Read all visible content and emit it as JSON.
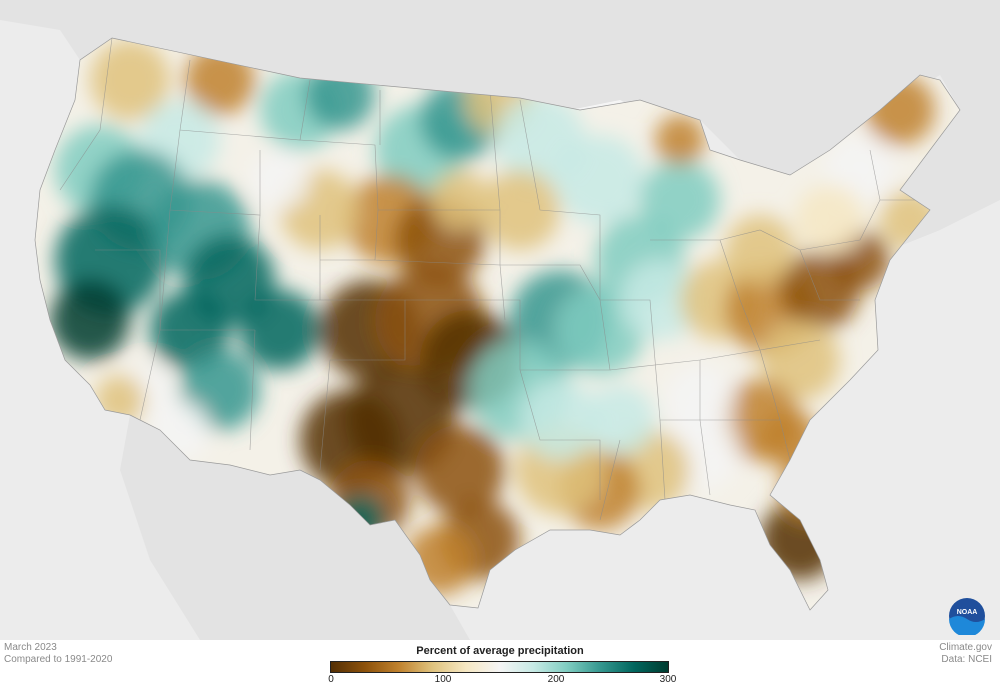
{
  "caption": {
    "date": "March 2023",
    "baseline": "Compared to 1991-2020"
  },
  "credit": {
    "site": "Climate.gov",
    "source": "Data: NCEI"
  },
  "legend": {
    "title": "Percent of average precipitation",
    "ticks": [
      "0",
      "100",
      "200",
      "300"
    ],
    "min": 0,
    "max": 300,
    "colors": [
      "#543005",
      "#8c510a",
      "#bf812d",
      "#dfc27d",
      "#f6e8c3",
      "#f5f5f5",
      "#c7eae5",
      "#80cdc1",
      "#35978f",
      "#01665e",
      "#003c30"
    ]
  },
  "logo": {
    "icon": "noaa-logo-icon",
    "text": "NOAA"
  },
  "colors": {
    "land_background": "#f4f1e8",
    "surrounding": "#e3e3e3",
    "water": "#f5f5f5",
    "dry": "#8c510a",
    "wet": "#01665e"
  }
}
